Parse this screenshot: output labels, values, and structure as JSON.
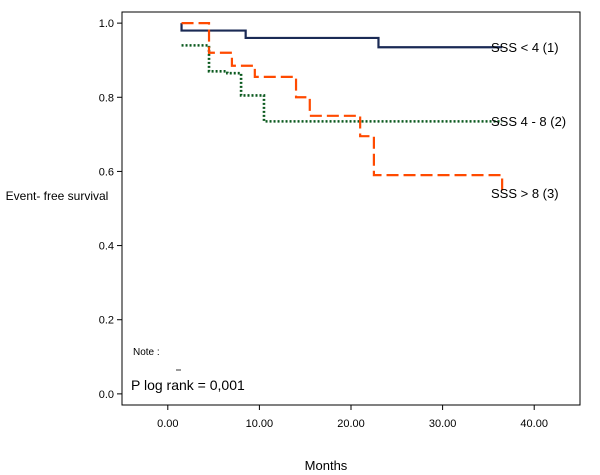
{
  "chart_data": {
    "type": "line",
    "step": true,
    "title": "",
    "xlabel": "Months",
    "ylabel": "Event- free survival",
    "xlim": [
      -5,
      45
    ],
    "ylim": [
      -0.03,
      1.03
    ],
    "x_ticks": [
      0,
      10,
      20,
      30,
      40
    ],
    "x_tick_labels": [
      "0.00",
      "10.00",
      "20.00",
      "30.00",
      "40.00"
    ],
    "y_ticks": [
      0,
      0.2,
      0.4,
      0.6,
      0.8,
      1.0
    ],
    "y_tick_labels": [
      "0.0",
      "0.2",
      "0.4",
      "0.6",
      "0.8",
      "1.0"
    ],
    "grid": false,
    "note_label": "Note :",
    "annotation": "P log rank = 0,001",
    "series": [
      {
        "name": "SSS < 4 (1)",
        "color": "#1a2a55",
        "dash": "solid",
        "x": [
          1.5,
          1.5,
          8.5,
          23,
          36.5
        ],
        "y": [
          1.0,
          0.98,
          0.96,
          0.935,
          0.935
        ]
      },
      {
        "name": "SSS 4 - 8 (2)",
        "color": "#0b5a1f",
        "dash": "dotted",
        "x": [
          1.5,
          4.5,
          6.5,
          8.0,
          10.5,
          18.0,
          36.5
        ],
        "y": [
          0.94,
          0.87,
          0.865,
          0.805,
          0.735,
          0.735,
          0.735
        ]
      },
      {
        "name": "SSS > 8 (3)",
        "color": "#ff4a00",
        "dash": "dashed",
        "x": [
          1.5,
          4.5,
          7.0,
          9.5,
          14.0,
          15.5,
          21.0,
          22.5,
          36.5
        ],
        "y": [
          1.0,
          0.92,
          0.885,
          0.855,
          0.8,
          0.75,
          0.695,
          0.59,
          0.54
        ]
      }
    ]
  }
}
